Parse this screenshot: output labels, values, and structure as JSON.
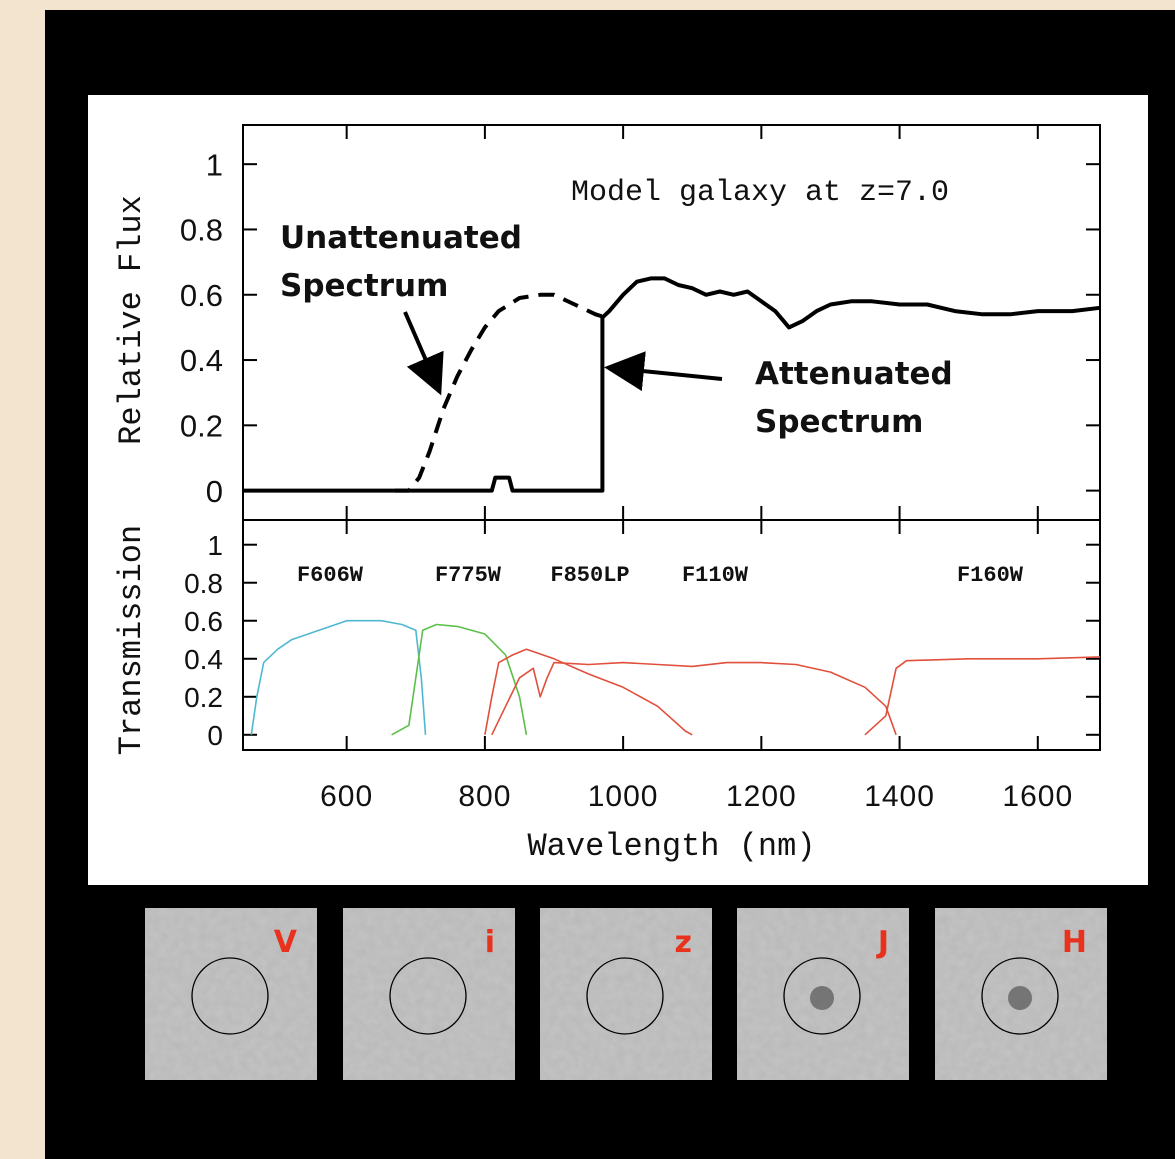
{
  "chart_data": [
    {
      "type": "line",
      "ylabel": "Relative Flux",
      "annotations": {
        "model": "Model galaxy at z=7.0",
        "unattenuated": [
          "Unattenuated",
          "Spectrum"
        ],
        "attenuated": [
          "Attenuated",
          "Spectrum"
        ]
      },
      "xlim": [
        450,
        1690
      ],
      "ylim": [
        -0.09,
        1.12
      ],
      "xticks": [
        600,
        800,
        1000,
        1200,
        1400,
        1600
      ],
      "yticks": [
        0,
        0.2,
        0.4,
        0.6,
        0.8,
        1
      ],
      "series": [
        {
          "style": "dashed",
          "color": "#000000",
          "x": [
            670,
            690,
            705,
            720,
            740,
            760,
            780,
            800,
            820,
            850,
            880,
            900,
            930,
            960,
            975
          ],
          "values": [
            0,
            0,
            0.04,
            0.12,
            0.25,
            0.35,
            0.43,
            0.5,
            0.55,
            0.59,
            0.6,
            0.6,
            0.57,
            0.54,
            0.53
          ]
        },
        {
          "style": "solid",
          "color": "#000000",
          "x": [
            450,
            810,
            815,
            835,
            840,
            970,
            970,
            980,
            1000,
            1020,
            1040,
            1060,
            1080,
            1100,
            1120,
            1140,
            1160,
            1180,
            1200,
            1220,
            1240,
            1260,
            1280,
            1300,
            1330,
            1360,
            1400,
            1440,
            1480,
            1520,
            1560,
            1600,
            1650,
            1690
          ],
          "values": [
            0,
            0,
            0.04,
            0.04,
            0,
            0,
            0.53,
            0.55,
            0.6,
            0.64,
            0.65,
            0.65,
            0.63,
            0.62,
            0.6,
            0.61,
            0.6,
            0.61,
            0.58,
            0.55,
            0.5,
            0.52,
            0.55,
            0.57,
            0.58,
            0.58,
            0.57,
            0.57,
            0.55,
            0.54,
            0.54,
            0.55,
            0.55,
            0.56
          ]
        }
      ]
    },
    {
      "type": "line",
      "ylabel": "Transmission",
      "xlabel": "Wavelength (nm)",
      "xlim": [
        450,
        1690
      ],
      "ylim": [
        -0.08,
        1.13
      ],
      "xticks": [
        600,
        800,
        1000,
        1200,
        1400,
        1600
      ],
      "yticks": [
        0,
        0.2,
        0.4,
        0.6,
        0.8,
        1
      ],
      "series": [
        {
          "name": "F606W",
          "color": "#4fb8d0",
          "x": [
            462,
            470,
            480,
            500,
            520,
            560,
            600,
            650,
            680,
            700,
            708,
            714
          ],
          "values": [
            0,
            0.2,
            0.38,
            0.45,
            0.5,
            0.55,
            0.6,
            0.6,
            0.58,
            0.55,
            0.3,
            0
          ]
        },
        {
          "name": "F775W",
          "color": "#5cbf4a",
          "x": [
            665,
            690,
            700,
            710,
            730,
            760,
            800,
            830,
            850,
            860
          ],
          "values": [
            0,
            0.05,
            0.3,
            0.55,
            0.58,
            0.57,
            0.53,
            0.42,
            0.2,
            0
          ]
        },
        {
          "name": "F850LP",
          "color": "#e0503c",
          "x": [
            800,
            810,
            820,
            840,
            860,
            900,
            950,
            1000,
            1050,
            1090,
            1100
          ],
          "values": [
            0,
            0.2,
            0.38,
            0.42,
            0.45,
            0.4,
            0.32,
            0.25,
            0.15,
            0.02,
            0
          ]
        },
        {
          "name": "F110W",
          "color": "#e0503c",
          "x": [
            810,
            830,
            850,
            870,
            880,
            890,
            900,
            950,
            1000,
            1050,
            1100,
            1150,
            1200,
            1250,
            1300,
            1350,
            1380,
            1395
          ],
          "values": [
            0,
            0.15,
            0.3,
            0.35,
            0.2,
            0.3,
            0.38,
            0.37,
            0.38,
            0.37,
            0.36,
            0.38,
            0.38,
            0.37,
            0.33,
            0.25,
            0.15,
            0
          ]
        },
        {
          "name": "F160W",
          "color": "#e0503c",
          "x": [
            1350,
            1380,
            1395,
            1410,
            1500,
            1600,
            1690
          ],
          "values": [
            0,
            0.1,
            0.35,
            0.39,
            0.4,
            0.4,
            0.41
          ]
        }
      ]
    }
  ],
  "thumbnails": {
    "labels": [
      "V",
      "i",
      "z",
      "J",
      "H"
    ]
  }
}
